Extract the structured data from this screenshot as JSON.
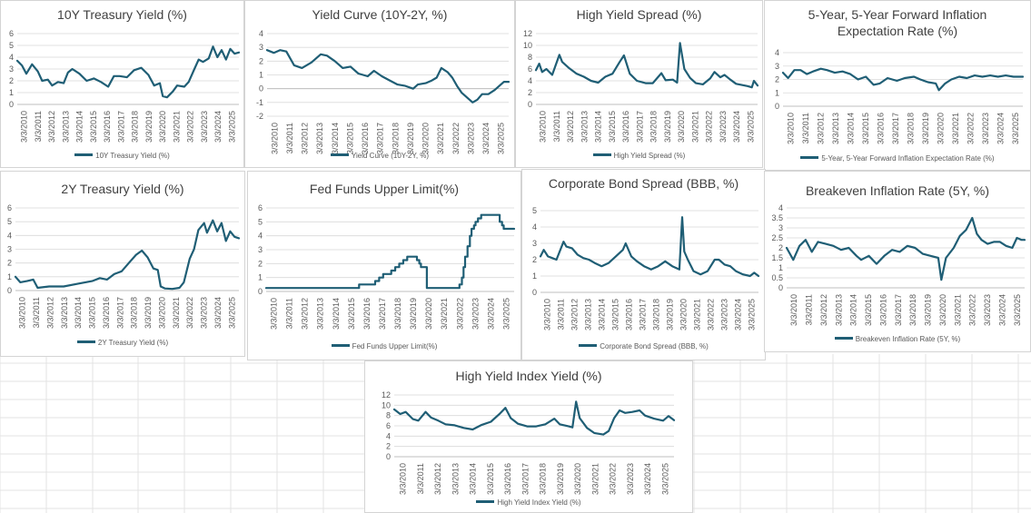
{
  "colors": {
    "line": "#1f5e75",
    "grid": "#d9d9d9",
    "axis": "#bfbfbf",
    "cell": "#e3e3e3"
  },
  "year_labels": [
    "3/3/2010",
    "3/3/2011",
    "3/3/2012",
    "3/3/2013",
    "3/3/2014",
    "3/3/2015",
    "3/3/2016",
    "3/3/2017",
    "3/3/2018",
    "3/3/2019",
    "3/3/2020",
    "3/3/2021",
    "3/3/2022",
    "3/3/2023",
    "3/3/2024",
    "3/3/2025"
  ],
  "chart_data": [
    {
      "type": "line",
      "title": "10Y Treasury Yield (%)",
      "legend": "10Y Treasury Yield (%)",
      "ylim": [
        0,
        6
      ],
      "yticks": [
        0,
        1,
        2,
        3,
        4,
        5,
        6
      ],
      "xlim": [
        2010.17,
        2025.6
      ],
      "series": [
        {
          "name": "10Y Treasury Yield (%)",
          "x": [
            2010.17,
            2010.5,
            2010.8,
            2011.2,
            2011.6,
            2011.9,
            2012.3,
            2012.6,
            2013.0,
            2013.4,
            2013.7,
            2014.0,
            2014.5,
            2015.0,
            2015.5,
            2016.0,
            2016.5,
            2016.9,
            2017.3,
            2017.8,
            2018.3,
            2018.8,
            2019.3,
            2019.7,
            2020.1,
            2020.3,
            2020.6,
            2021.0,
            2021.3,
            2021.8,
            2022.1,
            2022.5,
            2022.8,
            2023.1,
            2023.5,
            2023.8,
            2024.1,
            2024.4,
            2024.7,
            2025.0,
            2025.3,
            2025.6
          ],
          "y": [
            3.7,
            3.3,
            2.6,
            3.4,
            2.8,
            2.0,
            2.1,
            1.6,
            1.9,
            1.8,
            2.7,
            3.0,
            2.6,
            2.0,
            2.2,
            1.9,
            1.5,
            2.4,
            2.4,
            2.3,
            2.9,
            3.1,
            2.5,
            1.6,
            1.8,
            0.7,
            0.6,
            1.1,
            1.6,
            1.5,
            1.9,
            3.0,
            3.8,
            3.6,
            3.9,
            4.9,
            4.0,
            4.6,
            3.8,
            4.7,
            4.3,
            4.4
          ]
        }
      ]
    },
    {
      "type": "line",
      "title": "Yield Curve (10Y-2Y, %)",
      "legend": "Yield Curve (10Y-2Y, %)",
      "ylim": [
        -2,
        4
      ],
      "yticks": [
        -2,
        -1,
        0,
        1,
        2,
        3,
        4
      ],
      "xlim": [
        2010.17,
        2025.6
      ],
      "series": [
        {
          "name": "Yield Curve (10Y-2Y, %)",
          "x": [
            2010.17,
            2010.6,
            2011.0,
            2011.4,
            2011.9,
            2012.4,
            2013.0,
            2013.6,
            2014.0,
            2014.5,
            2015.0,
            2015.5,
            2016.0,
            2016.6,
            2017.0,
            2017.5,
            2018.0,
            2018.5,
            2019.0,
            2019.5,
            2019.8,
            2020.3,
            2020.7,
            2021.0,
            2021.3,
            2021.7,
            2022.0,
            2022.3,
            2022.6,
            2022.9,
            2023.3,
            2023.6,
            2023.9,
            2024.3,
            2024.7,
            2025.0,
            2025.3,
            2025.6
          ],
          "y": [
            2.8,
            2.6,
            2.8,
            2.7,
            1.7,
            1.5,
            1.9,
            2.5,
            2.4,
            2.0,
            1.5,
            1.6,
            1.1,
            0.9,
            1.3,
            0.9,
            0.6,
            0.3,
            0.2,
            0.0,
            0.3,
            0.4,
            0.6,
            0.8,
            1.5,
            1.2,
            0.8,
            0.2,
            -0.3,
            -0.6,
            -1.0,
            -0.8,
            -0.4,
            -0.4,
            -0.1,
            0.2,
            0.5,
            0.5
          ]
        }
      ]
    },
    {
      "type": "line",
      "title": "High Yield Spread (%)",
      "legend": "High Yield Spread (%)",
      "ylim": [
        0,
        12
      ],
      "yticks": [
        0,
        2,
        4,
        6,
        8,
        10,
        12
      ],
      "xlim": [
        2010.17,
        2025.6
      ],
      "series": [
        {
          "name": "High Yield Spread (%)",
          "x": [
            2010.17,
            2010.4,
            2010.6,
            2010.9,
            2011.3,
            2011.8,
            2012.0,
            2012.5,
            2013.0,
            2013.5,
            2014.0,
            2014.5,
            2015.0,
            2015.5,
            2016.0,
            2016.3,
            2016.7,
            2017.2,
            2017.8,
            2018.3,
            2018.9,
            2019.2,
            2019.7,
            2020.0,
            2020.2,
            2020.5,
            2020.9,
            2021.3,
            2021.8,
            2022.3,
            2022.6,
            2023.0,
            2023.3,
            2023.7,
            2024.1,
            2024.5,
            2024.9,
            2025.2,
            2025.35,
            2025.6
          ],
          "y": [
            5.8,
            6.9,
            5.5,
            6.0,
            5.0,
            8.4,
            7.2,
            6.1,
            5.2,
            4.7,
            4.0,
            3.7,
            4.7,
            5.2,
            7.2,
            8.3,
            5.2,
            4.0,
            3.6,
            3.6,
            5.3,
            4.1,
            4.2,
            3.7,
            10.4,
            6.0,
            4.5,
            3.6,
            3.4,
            4.4,
            5.5,
            4.6,
            5.0,
            4.2,
            3.5,
            3.3,
            3.1,
            2.9,
            4.0,
            3.2
          ]
        }
      ]
    },
    {
      "type": "line",
      "title": "5-Year, 5-Year Forward Inflation Expectation Rate (%)",
      "legend": "5-Year, 5-Year Forward Inflation Expectation Rate (%)",
      "ylim": [
        0,
        4
      ],
      "yticks": [
        0,
        1,
        2,
        3,
        4
      ],
      "xlim": [
        2010.17,
        2025.6
      ],
      "series": [
        {
          "name": "5-Year, 5-Year Forward Inflation Expectation Rate (%)",
          "x": [
            2010.17,
            2010.5,
            2010.9,
            2011.3,
            2011.7,
            2012.1,
            2012.6,
            2013.0,
            2013.5,
            2014.0,
            2014.5,
            2015.0,
            2015.5,
            2016.0,
            2016.4,
            2016.9,
            2017.5,
            2018.0,
            2018.6,
            2019.0,
            2019.5,
            2020.0,
            2020.2,
            2020.6,
            2021.0,
            2021.5,
            2022.0,
            2022.5,
            2023.0,
            2023.5,
            2024.0,
            2024.5,
            2025.0,
            2025.6
          ],
          "y": [
            2.5,
            2.1,
            2.7,
            2.7,
            2.4,
            2.6,
            2.8,
            2.7,
            2.5,
            2.6,
            2.4,
            2.0,
            2.2,
            1.6,
            1.7,
            2.1,
            1.9,
            2.1,
            2.2,
            2.0,
            1.8,
            1.7,
            1.2,
            1.7,
            2.0,
            2.2,
            2.1,
            2.3,
            2.2,
            2.3,
            2.2,
            2.3,
            2.2,
            2.2
          ]
        }
      ]
    },
    {
      "type": "line",
      "title": "2Y Treasury Yield (%)",
      "legend": "2Y Treasury Yield (%)",
      "ylim": [
        0,
        6
      ],
      "yticks": [
        0,
        1,
        2,
        3,
        4,
        5,
        6
      ],
      "xlim": [
        2010.17,
        2025.6
      ],
      "series": [
        {
          "name": "2Y Treasury Yield (%)",
          "x": [
            2010.17,
            2010.5,
            2011.0,
            2011.4,
            2011.7,
            2012.5,
            2013.5,
            2014.5,
            2015.0,
            2015.5,
            2016.0,
            2016.5,
            2017.0,
            2017.5,
            2018.0,
            2018.5,
            2018.9,
            2019.3,
            2019.7,
            2020.0,
            2020.2,
            2020.5,
            2021.0,
            2021.5,
            2021.8,
            2022.2,
            2022.5,
            2022.8,
            2023.2,
            2023.4,
            2023.8,
            2024.1,
            2024.4,
            2024.7,
            2025.0,
            2025.3,
            2025.6
          ],
          "y": [
            1.0,
            0.6,
            0.7,
            0.8,
            0.2,
            0.3,
            0.3,
            0.5,
            0.6,
            0.7,
            0.9,
            0.8,
            1.2,
            1.4,
            2.0,
            2.6,
            2.9,
            2.4,
            1.6,
            1.5,
            0.3,
            0.15,
            0.12,
            0.2,
            0.6,
            2.3,
            3.0,
            4.4,
            4.9,
            4.2,
            5.1,
            4.3,
            4.9,
            3.6,
            4.3,
            3.9,
            3.8
          ]
        }
      ]
    },
    {
      "type": "line",
      "title": "Fed Funds Upper Limit(%)",
      "legend": "Fed Funds Upper Limit(%)",
      "ylim": [
        0,
        6
      ],
      "yticks": [
        0,
        1,
        2,
        3,
        4,
        5,
        6
      ],
      "xlim": [
        2010.17,
        2025.6
      ],
      "series": [
        {
          "name": "Fed Funds Upper Limit(%)",
          "x": [
            2010.17,
            2015.95,
            2015.95,
            2016.95,
            2016.95,
            2017.2,
            2017.2,
            2017.45,
            2017.45,
            2017.95,
            2017.95,
            2018.2,
            2018.2,
            2018.45,
            2018.45,
            2018.7,
            2018.7,
            2018.95,
            2018.95,
            2019.55,
            2019.55,
            2019.7,
            2019.7,
            2019.8,
            2019.8,
            2020.17,
            2020.17,
            2022.2,
            2022.2,
            2022.35,
            2022.35,
            2022.45,
            2022.45,
            2022.55,
            2022.55,
            2022.7,
            2022.7,
            2022.85,
            2022.85,
            2022.95,
            2022.95,
            2023.1,
            2023.1,
            2023.2,
            2023.2,
            2023.35,
            2023.35,
            2023.55,
            2023.55,
            2024.7,
            2024.7,
            2024.85,
            2024.85,
            2024.95,
            2024.95,
            2025.6
          ],
          "y": [
            0.25,
            0.25,
            0.5,
            0.5,
            0.75,
            0.75,
            1.0,
            1.0,
            1.25,
            1.25,
            1.5,
            1.5,
            1.75,
            1.75,
            2.0,
            2.0,
            2.25,
            2.25,
            2.5,
            2.5,
            2.25,
            2.25,
            2.0,
            2.0,
            1.75,
            1.75,
            0.25,
            0.25,
            0.5,
            0.5,
            1.0,
            1.0,
            1.75,
            1.75,
            2.5,
            2.5,
            3.25,
            3.25,
            4.0,
            4.0,
            4.5,
            4.5,
            4.75,
            4.75,
            5.0,
            5.0,
            5.25,
            5.25,
            5.5,
            5.5,
            5.0,
            5.0,
            4.75,
            4.75,
            4.5,
            4.5
          ]
        }
      ]
    },
    {
      "type": "line",
      "title": "Corporate Bond Spread (BBB, %)",
      "legend": "Corporate Bond Spread (BBB, %)",
      "ylim": [
        0,
        5
      ],
      "yticks": [
        0,
        1,
        2,
        3,
        4,
        5
      ],
      "xlim": [
        2010.17,
        2025.6
      ],
      "series": [
        {
          "name": "Corporate Bond Spread (BBB, %)",
          "x": [
            2010.17,
            2010.4,
            2010.7,
            2011.0,
            2011.3,
            2011.8,
            2012.0,
            2012.4,
            2012.8,
            2013.2,
            2013.6,
            2014.0,
            2014.5,
            2015.0,
            2015.5,
            2016.0,
            2016.2,
            2016.6,
            2017.0,
            2017.5,
            2018.0,
            2018.5,
            2019.0,
            2019.5,
            2020.0,
            2020.2,
            2020.35,
            2020.6,
            2021.0,
            2021.5,
            2022.0,
            2022.5,
            2022.8,
            2023.2,
            2023.6,
            2024.0,
            2024.5,
            2025.0,
            2025.3,
            2025.6
          ],
          "y": [
            2.2,
            2.6,
            2.2,
            2.1,
            2.0,
            3.1,
            2.8,
            2.7,
            2.3,
            2.1,
            2.0,
            1.8,
            1.6,
            1.8,
            2.2,
            2.6,
            3.0,
            2.2,
            1.9,
            1.6,
            1.4,
            1.6,
            1.9,
            1.6,
            1.4,
            4.6,
            2.5,
            2.0,
            1.3,
            1.1,
            1.3,
            2.0,
            2.0,
            1.7,
            1.6,
            1.3,
            1.1,
            1.0,
            1.2,
            1.0
          ]
        }
      ]
    },
    {
      "type": "line",
      "title": "Breakeven Inflation Rate (5Y, %)",
      "legend": "Breakeven Inflation Rate (5Y, %)",
      "ylim": [
        0,
        4
      ],
      "yticks": [
        0,
        0.5,
        1,
        1.5,
        2,
        2.5,
        3,
        3.5,
        4
      ],
      "xlim": [
        2010.17,
        2025.6
      ],
      "series": [
        {
          "name": "Breakeven Inflation Rate (5Y, %)",
          "x": [
            2010.17,
            2010.6,
            2011.0,
            2011.4,
            2011.8,
            2012.2,
            2012.7,
            2013.2,
            2013.7,
            2014.2,
            2014.7,
            2015.0,
            2015.5,
            2016.0,
            2016.5,
            2017.0,
            2017.5,
            2018.0,
            2018.5,
            2019.0,
            2019.5,
            2020.0,
            2020.2,
            2020.5,
            2021.0,
            2021.4,
            2021.8,
            2022.2,
            2022.5,
            2022.8,
            2023.2,
            2023.6,
            2024.0,
            2024.4,
            2024.8,
            2025.1,
            2025.4,
            2025.6
          ],
          "y": [
            2.0,
            1.4,
            2.1,
            2.4,
            1.8,
            2.3,
            2.2,
            2.1,
            1.9,
            2.0,
            1.6,
            1.4,
            1.6,
            1.2,
            1.6,
            1.9,
            1.8,
            2.1,
            2.0,
            1.7,
            1.6,
            1.5,
            0.4,
            1.5,
            2.0,
            2.6,
            2.9,
            3.5,
            2.7,
            2.4,
            2.2,
            2.3,
            2.3,
            2.1,
            2.0,
            2.5,
            2.4,
            2.4
          ]
        }
      ]
    },
    {
      "type": "line",
      "title": "High Yield Index Yield (%)",
      "legend": "High Yield Index Yield (%)",
      "ylim": [
        0,
        12
      ],
      "yticks": [
        0,
        2,
        4,
        6,
        8,
        10,
        12
      ],
      "xlim": [
        2010.17,
        2025.6
      ],
      "series": [
        {
          "name": "High Yield Index Yield (%)",
          "x": [
            2010.17,
            2010.5,
            2010.8,
            2011.2,
            2011.5,
            2011.9,
            2012.2,
            2012.6,
            2013.0,
            2013.5,
            2014.0,
            2014.5,
            2015.0,
            2015.5,
            2016.0,
            2016.3,
            2016.6,
            2017.0,
            2017.5,
            2018.0,
            2018.5,
            2019.0,
            2019.3,
            2019.8,
            2020.0,
            2020.2,
            2020.4,
            2020.8,
            2021.2,
            2021.7,
            2022.0,
            2022.3,
            2022.6,
            2022.9,
            2023.3,
            2023.7,
            2024.0,
            2024.5,
            2025.0,
            2025.3,
            2025.6
          ],
          "y": [
            9.2,
            8.3,
            8.7,
            7.3,
            7.0,
            8.7,
            7.6,
            7.0,
            6.3,
            6.1,
            5.6,
            5.3,
            6.2,
            6.8,
            8.4,
            9.5,
            7.5,
            6.4,
            5.9,
            5.9,
            6.3,
            7.4,
            6.3,
            5.9,
            5.7,
            10.7,
            7.5,
            5.6,
            4.6,
            4.3,
            5.0,
            7.5,
            9.0,
            8.5,
            8.7,
            9.0,
            8.0,
            7.4,
            7.0,
            7.9,
            7.1
          ]
        }
      ]
    }
  ]
}
